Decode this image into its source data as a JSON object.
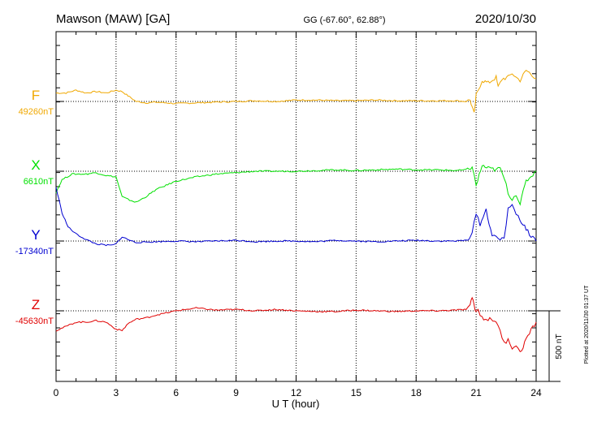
{
  "header": {
    "station": "Mawson (MAW)  [GA]",
    "coords": "GG (-67.60°,  62.88°)",
    "date": "2020/10/30"
  },
  "x_axis": {
    "label": "U T (hour)",
    "ticks": [
      "0",
      "3",
      "6",
      "9",
      "12",
      "15",
      "18",
      "21",
      "24"
    ]
  },
  "scale_bar": {
    "label": "500 nT"
  },
  "plotted_note": "Plotted at 2020/11/30 01:37 UT",
  "components": [
    {
      "key": "F",
      "baseline": "49260nT",
      "color": "#f0a800"
    },
    {
      "key": "X",
      "baseline": "6610nT",
      "color": "#00e000"
    },
    {
      "key": "Y",
      "baseline": "-17340nT",
      "color": "#0000d0"
    },
    {
      "key": "Z",
      "baseline": "-45630nT",
      "color": "#e00000"
    }
  ],
  "chart_data": {
    "type": "line",
    "title": "Mawson (MAW)  [GA]",
    "xlabel": "U T (hour)",
    "xlim": [
      0,
      24
    ],
    "x_ticks": [
      0,
      3,
      6,
      9,
      12,
      15,
      18,
      21,
      24
    ],
    "scale_nT_per_bar": 500,
    "grid": true,
    "series": [
      {
        "name": "F",
        "baseline": "49260nT",
        "color": "#f0a800",
        "x": [
          0,
          0.5,
          1,
          1.5,
          2,
          2.5,
          3,
          3.3,
          3.6,
          4,
          4.5,
          5,
          6,
          7,
          8,
          9,
          10,
          11,
          12,
          13,
          14,
          15,
          16,
          17,
          18,
          19,
          20,
          20.5,
          20.7,
          20.8,
          20.9,
          21,
          21.1,
          21.3,
          21.6,
          22,
          22.1,
          22.3,
          22.6,
          22.8,
          23,
          23.2,
          23.5,
          23.8,
          24
        ],
        "values": [
          60,
          60,
          80,
          60,
          70,
          60,
          80,
          70,
          40,
          0,
          -10,
          -5,
          -15,
          -10,
          -5,
          0,
          5,
          0,
          10,
          10,
          5,
          5,
          10,
          5,
          5,
          5,
          5,
          0,
          10,
          -40,
          -90,
          40,
          80,
          150,
          130,
          170,
          100,
          160,
          170,
          200,
          170,
          150,
          220,
          190,
          160
        ]
      },
      {
        "name": "X",
        "baseline": "6610nT",
        "color": "#00e000",
        "x": [
          0,
          0.3,
          0.8,
          1.5,
          2,
          2.5,
          3,
          3.3,
          3.6,
          4,
          4.5,
          5,
          6,
          7,
          8,
          9,
          10,
          11,
          12,
          13,
          14,
          15,
          16,
          17,
          18,
          19,
          20,
          20.5,
          20.8,
          21,
          21.3,
          21.6,
          22,
          22.2,
          22.4,
          22.6,
          22.8,
          23,
          23.2,
          23.5,
          24
        ],
        "values": [
          -150,
          -60,
          -20,
          -20,
          -10,
          -30,
          -40,
          -180,
          -200,
          -220,
          -180,
          -130,
          -70,
          -40,
          -20,
          -10,
          0,
          0,
          0,
          5,
          10,
          5,
          10,
          15,
          10,
          10,
          5,
          10,
          30,
          -100,
          40,
          20,
          10,
          20,
          -50,
          -150,
          -200,
          -160,
          -230,
          -70,
          0
        ]
      },
      {
        "name": "Y",
        "baseline": "-17340nT",
        "color": "#0000d0",
        "x": [
          0,
          0.3,
          0.6,
          1,
          1.5,
          2,
          2.5,
          2.8,
          3,
          3.3,
          3.6,
          4,
          5,
          6,
          7,
          8,
          9,
          10,
          11,
          12,
          13,
          14,
          15,
          16,
          17,
          18,
          19,
          20,
          20.5,
          20.8,
          21,
          21.2,
          21.5,
          21.8,
          22,
          22.2,
          22.4,
          22.6,
          22.8,
          23,
          23.2,
          23.5,
          24
        ],
        "values": [
          380,
          200,
          100,
          50,
          10,
          -20,
          -30,
          -30,
          -20,
          30,
          10,
          -10,
          -5,
          0,
          -5,
          0,
          5,
          -5,
          0,
          0,
          -5,
          5,
          0,
          -5,
          0,
          5,
          0,
          0,
          5,
          50,
          200,
          120,
          220,
          40,
          20,
          10,
          30,
          220,
          260,
          200,
          150,
          80,
          0
        ]
      },
      {
        "name": "Z",
        "baseline": "-45630nT",
        "color": "#e00000",
        "x": [
          0,
          0.5,
          1,
          1.5,
          2,
          2.5,
          3,
          3.3,
          3.6,
          4,
          4.5,
          5,
          6,
          7,
          8,
          9,
          10,
          11,
          12,
          13,
          14,
          15,
          16,
          17,
          18,
          19,
          20,
          20.5,
          20.7,
          20.8,
          20.9,
          21,
          21.1,
          21.3,
          21.6,
          22,
          22.2,
          22.4,
          22.6,
          22.8,
          23,
          23.2,
          23.5,
          24
        ],
        "values": [
          -140,
          -110,
          -80,
          -80,
          -70,
          -80,
          -130,
          -140,
          -90,
          -60,
          -50,
          -30,
          0,
          20,
          5,
          10,
          0,
          10,
          0,
          -5,
          -5,
          5,
          0,
          -5,
          0,
          0,
          5,
          10,
          30,
          100,
          40,
          -10,
          10,
          -50,
          -60,
          -70,
          -150,
          -230,
          -200,
          -260,
          -240,
          -300,
          -200,
          -80
        ]
      }
    ]
  }
}
